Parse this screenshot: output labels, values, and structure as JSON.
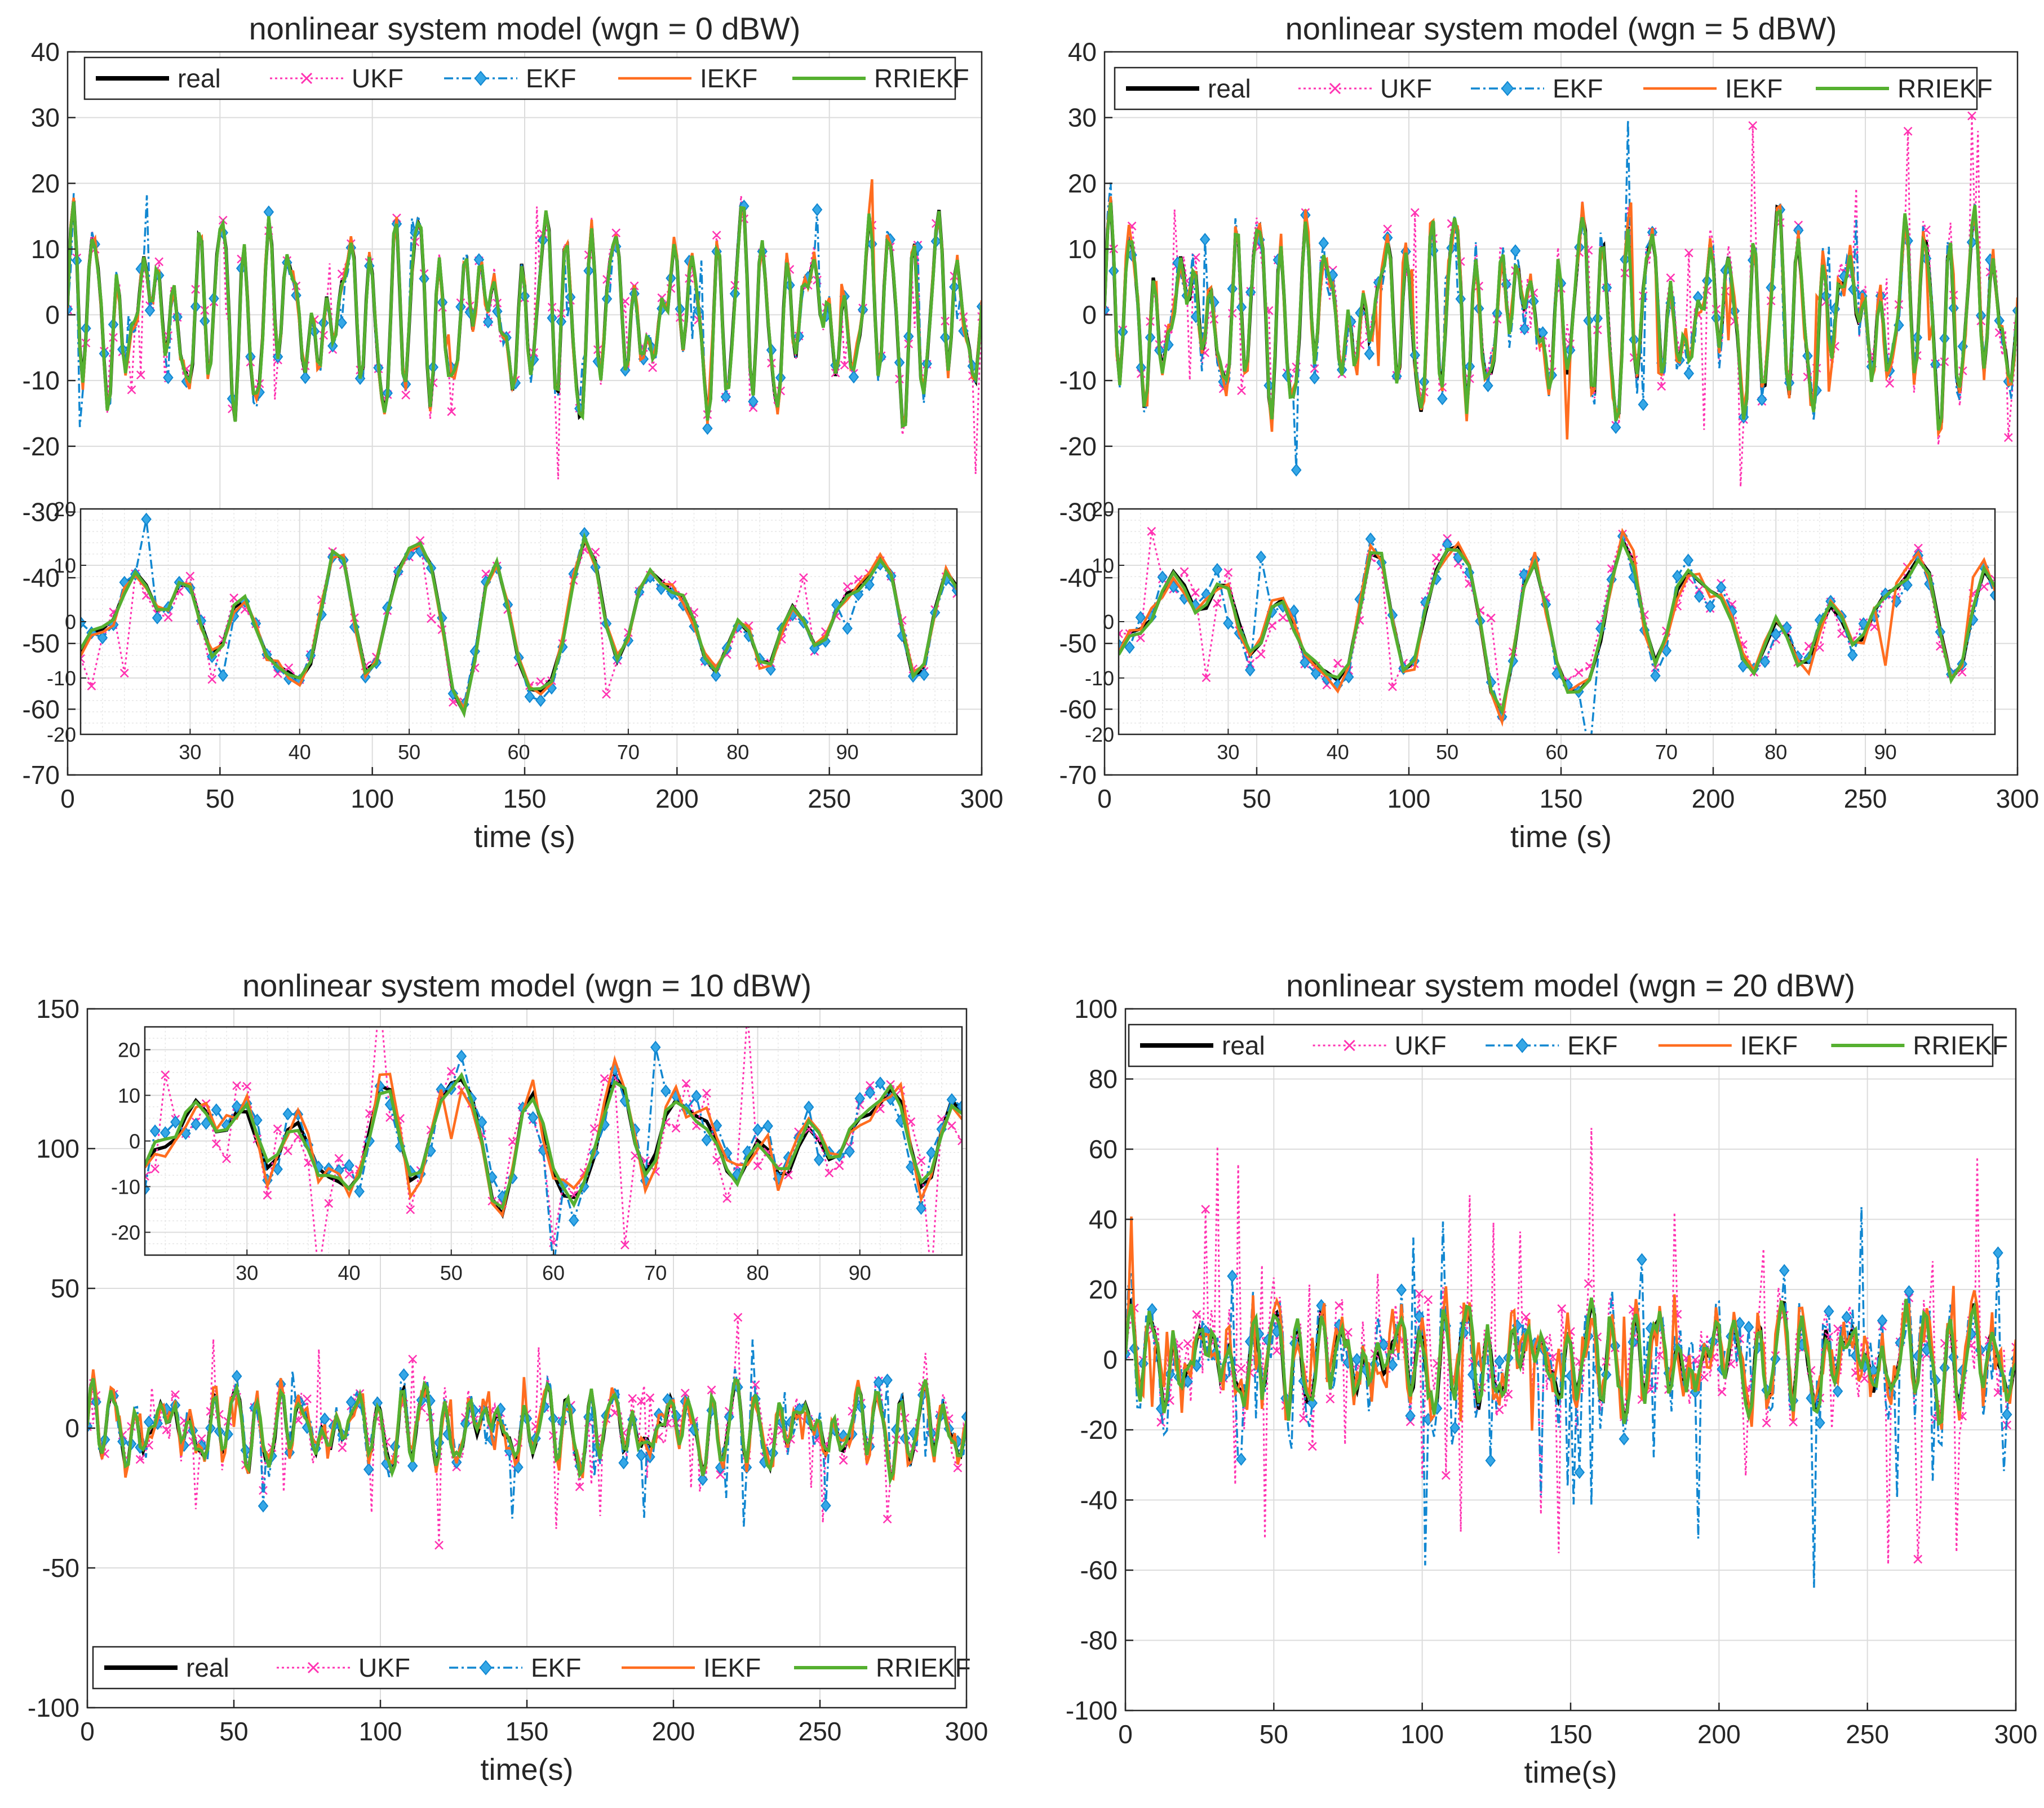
{
  "figure": {
    "series_styles": {
      "real": {
        "color": "#000000"
      },
      "UKF": {
        "color": "#ff33b2"
      },
      "EKF": {
        "color": "#1187d1",
        "marker_fill": "#35a7e6"
      },
      "IEKF": {
        "color": "#ff6d1f"
      },
      "RRIEKF": {
        "color": "#55b030"
      }
    }
  },
  "chart_data": [
    {
      "type": "line",
      "title": "nonlinear system model (wgn = 0 dBW)",
      "xlabel": "time (s)",
      "ylabel": "",
      "xlim": [
        0,
        300
      ],
      "ylim": [
        -70,
        40
      ],
      "xticks": [
        0,
        50,
        100,
        150,
        200,
        250,
        300
      ],
      "xtick_labels": [
        "0",
        "50",
        "100",
        "150",
        "200",
        "250",
        "300"
      ],
      "yticks": [
        -70,
        -60,
        -50,
        -40,
        -30,
        -20,
        -10,
        0,
        10,
        20,
        30,
        40
      ],
      "ytick_labels": [
        "-70",
        "-60",
        "-50",
        "-40",
        "-30",
        "-20",
        "-10",
        "0",
        "10",
        "20",
        "30",
        "40"
      ],
      "grid": true,
      "legend": [
        "real",
        "UKF",
        "EKF",
        "IEKF",
        "RRIEKF"
      ],
      "legend_location": "top",
      "noise_level": 0,
      "seed": 11,
      "inset": {
        "xlim": [
          20,
          100
        ],
        "ylim": [
          -20,
          20
        ],
        "xticks": [
          30,
          40,
          50,
          60,
          70,
          80,
          90
        ],
        "xtick_labels": [
          "30",
          "40",
          "50",
          "60",
          "70",
          "80",
          "90"
        ],
        "yticks": [
          -20,
          -10,
          0,
          10,
          20
        ],
        "ytick_labels": [
          "-20",
          "-10",
          "0",
          "10",
          "20"
        ],
        "location": "lower"
      }
    },
    {
      "type": "line",
      "title": "nonlinear system model (wgn = 5 dBW)",
      "xlabel": "time (s)",
      "ylabel": "",
      "xlim": [
        0,
        300
      ],
      "ylim": [
        -70,
        40
      ],
      "xticks": [
        0,
        50,
        100,
        150,
        200,
        250,
        300
      ],
      "xtick_labels": [
        "0",
        "50",
        "100",
        "150",
        "200",
        "250",
        "300"
      ],
      "yticks": [
        -70,
        -60,
        -50,
        -40,
        -30,
        -20,
        -10,
        0,
        10,
        20,
        30,
        40
      ],
      "ytick_labels": [
        "-70",
        "-60",
        "-50",
        "-40",
        "-30",
        "-20",
        "-10",
        "0",
        "10",
        "20",
        "30",
        "40"
      ],
      "grid": true,
      "legend": [
        "real",
        "UKF",
        "EKF",
        "IEKF",
        "RRIEKF"
      ],
      "legend_location": "top",
      "noise_level": 0.15,
      "seed": 23,
      "inset": {
        "xlim": [
          20,
          100
        ],
        "ylim": [
          -20,
          20
        ],
        "xticks": [
          30,
          40,
          50,
          60,
          70,
          80,
          90
        ],
        "xtick_labels": [
          "30",
          "40",
          "50",
          "60",
          "70",
          "80",
          "90"
        ],
        "yticks": [
          -20,
          -10,
          0,
          10,
          20
        ],
        "ytick_labels": [
          "-20",
          "-10",
          "0",
          "10",
          "20"
        ],
        "location": "lower"
      }
    },
    {
      "type": "line",
      "title": "nonlinear system model (wgn = 10 dBW)",
      "xlabel": "time(s)",
      "ylabel": "",
      "xlim": [
        0,
        300
      ],
      "ylim": [
        -100,
        150
      ],
      "xticks": [
        0,
        50,
        100,
        150,
        200,
        250,
        300
      ],
      "xtick_labels": [
        "0",
        "50",
        "100",
        "150",
        "200",
        "250",
        "300"
      ],
      "yticks": [
        -100,
        -50,
        0,
        50,
        100,
        150
      ],
      "ytick_labels": [
        "-100",
        "-50",
        "0",
        "50",
        "100",
        "150"
      ],
      "grid": true,
      "legend": [
        "real",
        "UKF",
        "EKF",
        "IEKF",
        "RRIEKF"
      ],
      "legend_location": "bottom",
      "noise_level": 0.5,
      "seed": 37,
      "inset": {
        "xlim": [
          20,
          100
        ],
        "ylim": [
          -25,
          25
        ],
        "xticks": [
          30,
          40,
          50,
          60,
          70,
          80,
          90
        ],
        "xtick_labels": [
          "30",
          "40",
          "50",
          "60",
          "70",
          "80",
          "90"
        ],
        "yticks": [
          -20,
          -10,
          0,
          10,
          20
        ],
        "ytick_labels": [
          "-20",
          "-10",
          "0",
          "10",
          "20"
        ],
        "location": "upper"
      }
    },
    {
      "type": "line",
      "title": "nonlinear system model (wgn = 20 dBW)",
      "xlabel": "time(s)",
      "ylabel": "",
      "xlim": [
        0,
        300
      ],
      "ylim": [
        -100,
        100
      ],
      "xticks": [
        0,
        50,
        100,
        150,
        200,
        250,
        300
      ],
      "xtick_labels": [
        "0",
        "50",
        "100",
        "150",
        "200",
        "250",
        "300"
      ],
      "yticks": [
        -100,
        -80,
        -60,
        -40,
        -20,
        0,
        20,
        40,
        60,
        80,
        100
      ],
      "ytick_labels": [
        "-100",
        "-80",
        "-60",
        "-40",
        "-20",
        "0",
        "20",
        "40",
        "60",
        "80",
        "100"
      ],
      "grid": true,
      "legend": [
        "real",
        "UKF",
        "EKF",
        "IEKF",
        "RRIEKF"
      ],
      "legend_location": "top",
      "noise_level": 1.0,
      "seed": 53,
      "inset": null
    }
  ]
}
